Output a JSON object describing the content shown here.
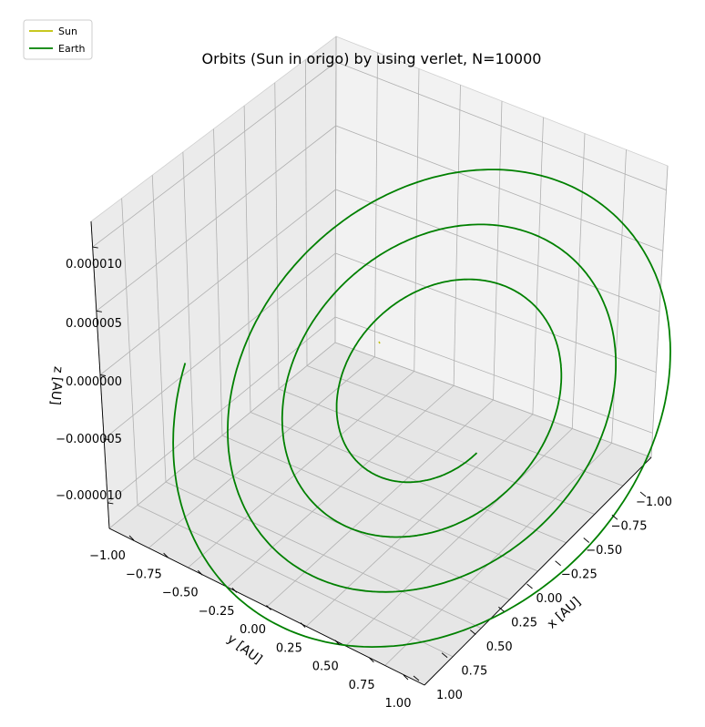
{
  "chart_data": {
    "type": "line",
    "projection": "3d",
    "title": "Orbits (Sun in origo) by using verlet, N=10000",
    "xlabel": "x [AU]",
    "ylabel": "y [AU]",
    "zlabel": "z [AU]",
    "x_ticks": [
      "−1.00",
      "−0.75",
      "−0.50",
      "−0.25",
      "0.00",
      "0.25",
      "0.50",
      "0.75",
      "1.00"
    ],
    "y_ticks": [
      "−1.00",
      "−0.75",
      "−0.50",
      "−0.25",
      "0.00",
      "0.25",
      "0.50",
      "0.75",
      "1.00"
    ],
    "z_ticks": [
      "−0.000010",
      "−0.000005",
      "0.000000",
      "0.000005",
      "0.000010"
    ],
    "xlim": [
      -1.0,
      1.0
    ],
    "ylim": [
      -1.0,
      1.0
    ],
    "zlim": [
      -1.2e-05,
      1.2e-05
    ],
    "grid": true,
    "legend_placement": "upper-left",
    "series": [
      {
        "name": "Sun",
        "color": "#bfbf00",
        "path": "point at origin (0, 0, 0)"
      },
      {
        "name": "Earth",
        "color": "#008000",
        "path": "spiral in the x-y plane, radius about 0.25 to 1.0 AU"
      }
    ]
  }
}
